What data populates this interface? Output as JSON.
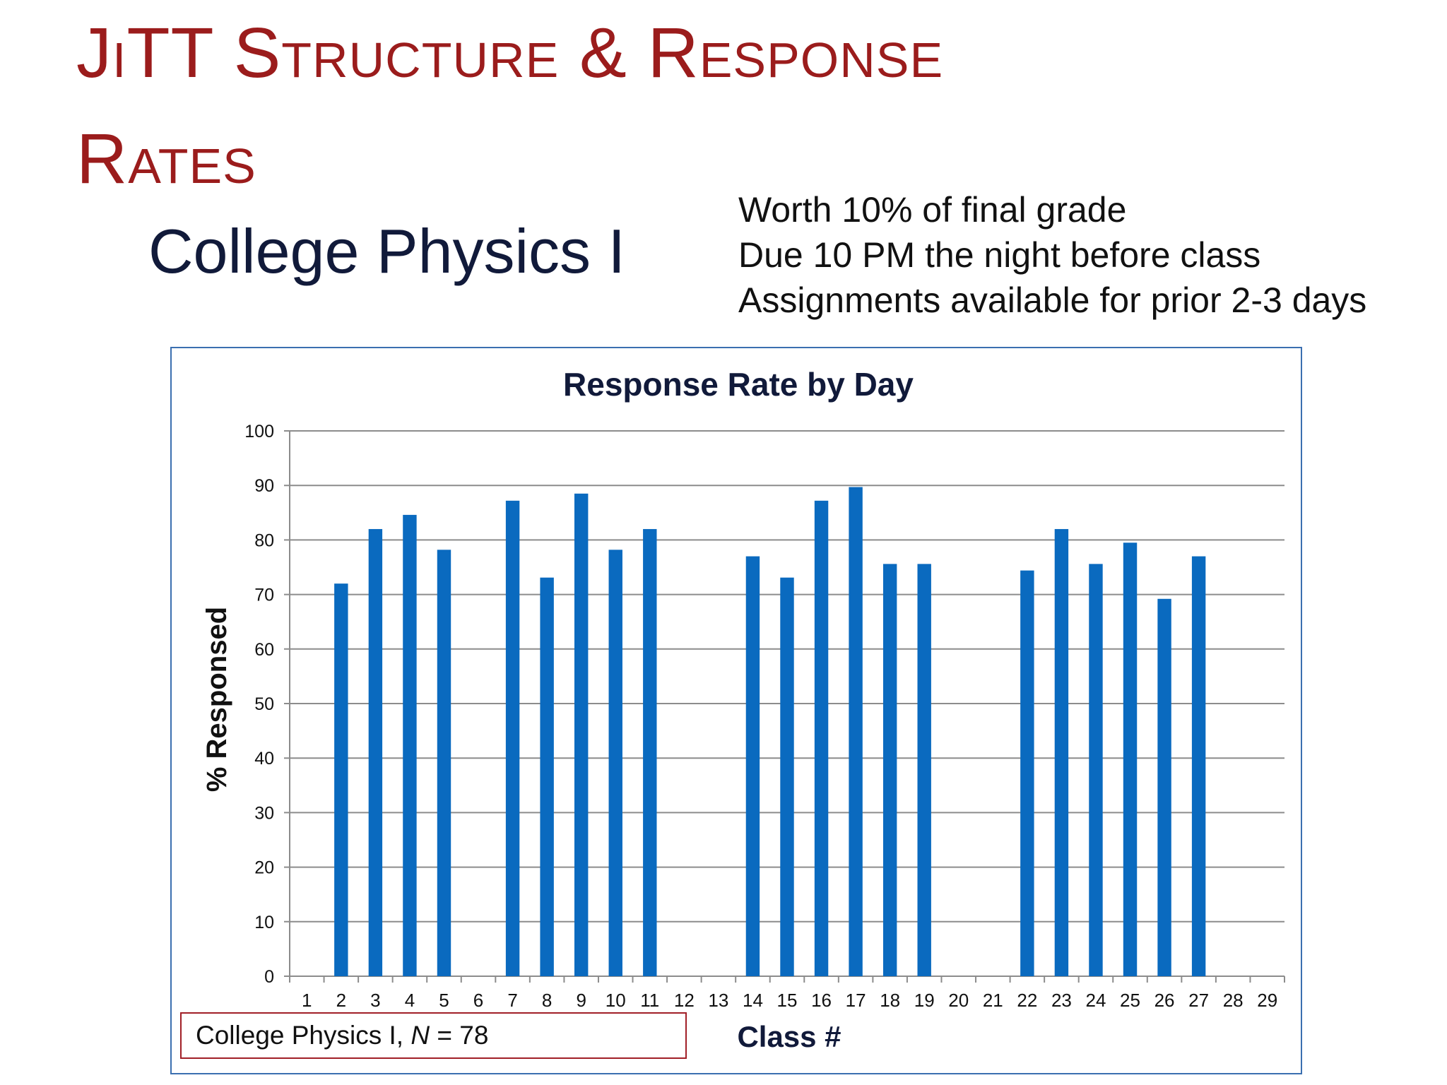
{
  "slide": {
    "title_line1": "JiTT Structure & Response",
    "title_line2": "Rates",
    "course": "College Physics I",
    "info": [
      "Worth 10% of final grade",
      "Due 10 PM the night before class",
      "Assignments available for prior 2-3 days"
    ]
  },
  "legend": {
    "prefix": "College Physics I, ",
    "n_label": "N",
    "suffix": " = 78"
  },
  "colors": {
    "title": "#9b1c1c",
    "bar": "#0a6abf",
    "grid": "#8c8c8c",
    "frame": "#3b6fb0"
  },
  "chart_data": {
    "type": "bar",
    "title": "Response Rate by Day",
    "xlabel": "Class #",
    "ylabel": "% Responsed",
    "ylim": [
      0,
      100
    ],
    "yticks": [
      0,
      10,
      20,
      30,
      40,
      50,
      60,
      70,
      80,
      90,
      100
    ],
    "grid": true,
    "categories": [
      "1",
      "2",
      "3",
      "4",
      "5",
      "6",
      "7",
      "8",
      "9",
      "10",
      "11",
      "12",
      "13",
      "14",
      "15",
      "16",
      "17",
      "18",
      "19",
      "20",
      "21",
      "22",
      "23",
      "24",
      "25",
      "26",
      "27",
      "28",
      "29"
    ],
    "values": [
      null,
      72,
      82,
      84.6,
      78.2,
      null,
      87.2,
      73.1,
      88.5,
      78.2,
      82,
      null,
      null,
      77,
      73.1,
      87.2,
      89.7,
      75.6,
      75.6,
      null,
      null,
      74.4,
      82,
      75.6,
      79.5,
      69.2,
      77,
      null,
      null
    ]
  }
}
